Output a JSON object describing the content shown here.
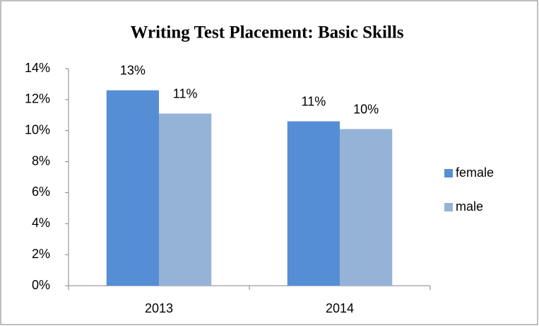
{
  "chart_data": {
    "type": "bar",
    "title": "Writing Test Placement: Basic Skills",
    "categories": [
      "2013",
      "2014"
    ],
    "series": [
      {
        "name": "female",
        "color": "#558ed5",
        "values": [
          12.6,
          10.6
        ],
        "value_labels": [
          "13%",
          "11%"
        ]
      },
      {
        "name": "male",
        "color": "#95b3d7",
        "values": [
          11.1,
          10.1
        ],
        "value_labels": [
          "11%",
          "10%"
        ]
      }
    ],
    "ylim": [
      0,
      14
    ],
    "yticks": [
      {
        "value": 0,
        "label": "0%"
      },
      {
        "value": 2,
        "label": "2%"
      },
      {
        "value": 4,
        "label": "4%"
      },
      {
        "value": 6,
        "label": "6%"
      },
      {
        "value": 8,
        "label": "8%"
      },
      {
        "value": 10,
        "label": "10%"
      },
      {
        "value": 12,
        "label": "12%"
      },
      {
        "value": 14,
        "label": "14%"
      }
    ],
    "grid": false,
    "legend": "right"
  }
}
